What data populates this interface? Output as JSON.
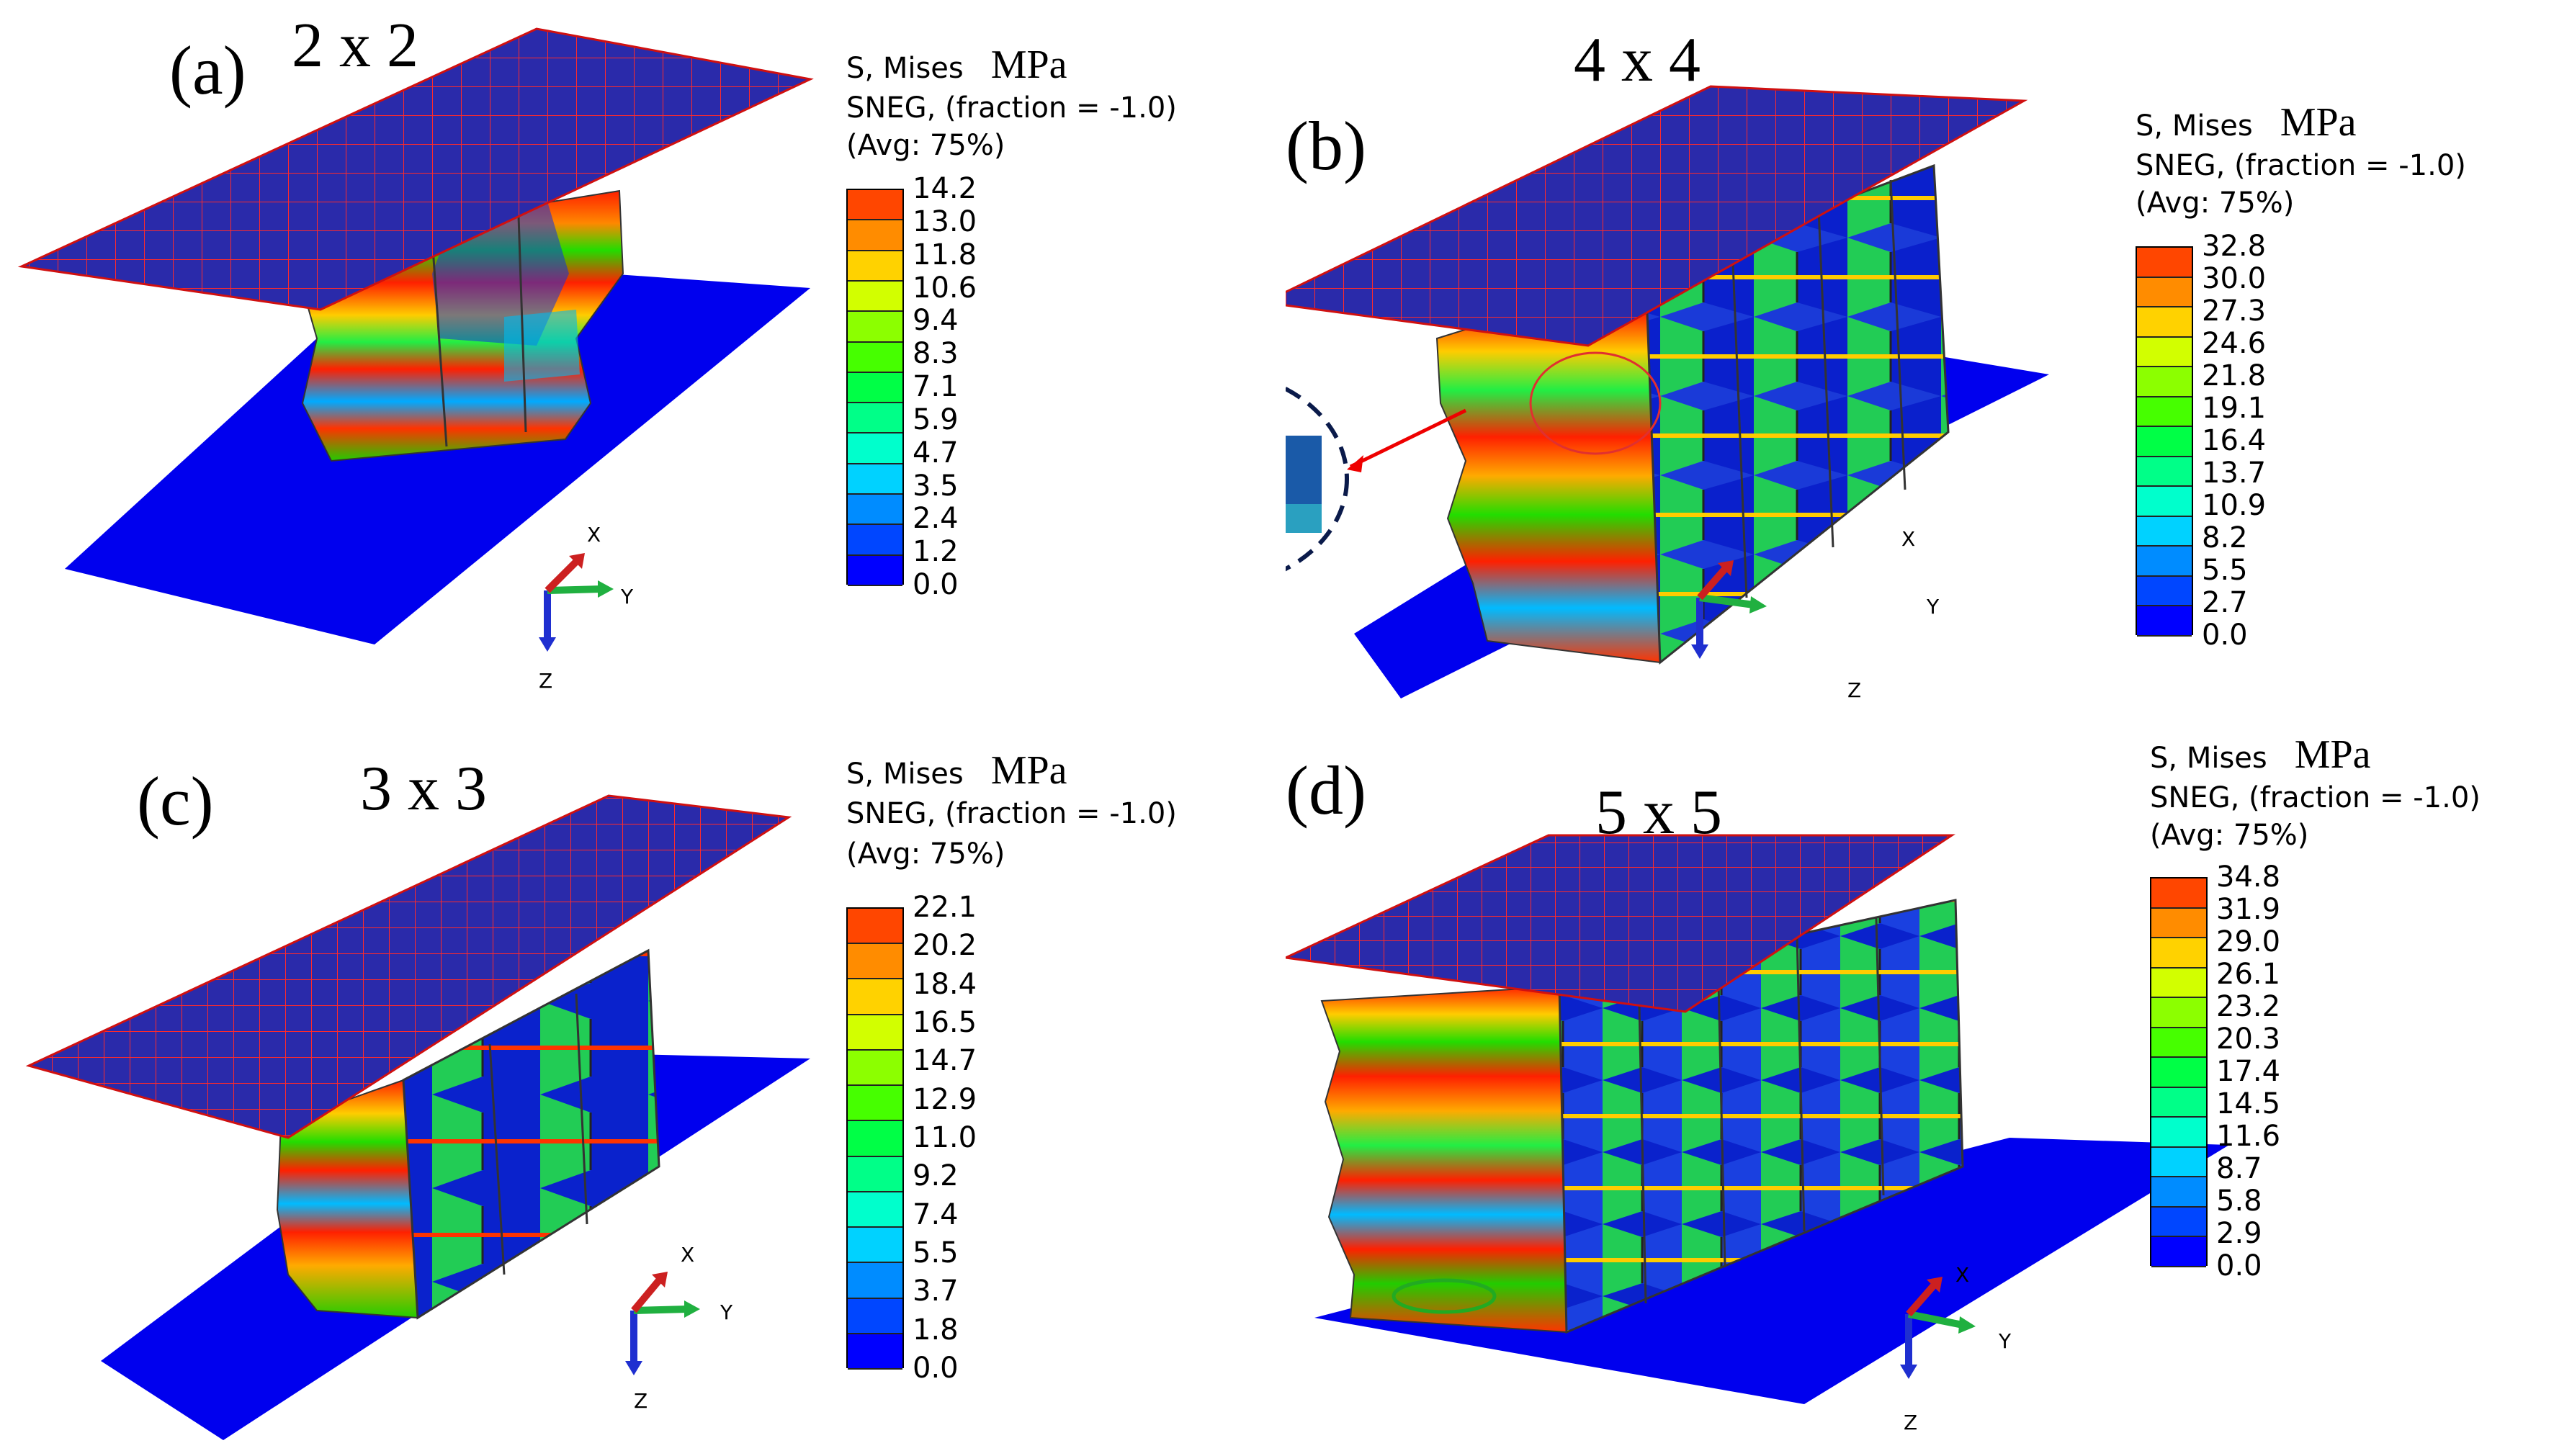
{
  "legend_colors": [
    "#0000ff",
    "#0046ff",
    "#008cff",
    "#00d2ff",
    "#00ffcc",
    "#00ff88",
    "#00ff46",
    "#46ff00",
    "#8cff00",
    "#d2ff00",
    "#ffd200",
    "#ff8c00",
    "#ff4600"
  ],
  "panels": [
    {
      "tag": "(a)",
      "grid": "2 x 2",
      "legend": {
        "line1": "S, Mises",
        "unit": "MPa",
        "line2": "SNEG, (fraction = -1.0)",
        "line3": "(Avg: 75%)",
        "values": [
          "14.2",
          "13.0",
          "11.8",
          "10.6",
          "9.4",
          "8.3",
          "7.1",
          "5.9",
          "4.7",
          "3.5",
          "2.4",
          "1.2",
          "0.0"
        ]
      },
      "axes": {
        "x": "X",
        "y": "Y",
        "z": "Z"
      }
    },
    {
      "tag": "(b)",
      "grid": "4 x 4",
      "legend": {
        "line1": "S, Mises",
        "unit": "MPa",
        "line2": "SNEG, (fraction = -1.0)",
        "line3": "(Avg: 75%)",
        "values": [
          "32.8",
          "30.0",
          "27.3",
          "24.6",
          "21.8",
          "19.1",
          "16.4",
          "13.7",
          "10.9",
          "8.2",
          "5.5",
          "2.7",
          "0.0"
        ]
      },
      "axes": {
        "x": "X",
        "y": "Y",
        "z": "Z"
      }
    },
    {
      "tag": "(c)",
      "grid": "3 x 3",
      "legend": {
        "line1": "S, Mises",
        "unit": "MPa",
        "line2": "SNEG, (fraction = -1.0)",
        "line3": "(Avg: 75%)",
        "values": [
          "22.1",
          "20.2",
          "18.4",
          "16.5",
          "14.7",
          "12.9",
          "11.0",
          "9.2",
          "7.4",
          "5.5",
          "3.7",
          "1.8",
          "0.0"
        ]
      },
      "axes": {
        "x": "X",
        "y": "Y",
        "z": "Z"
      }
    },
    {
      "tag": "(d)",
      "grid": "5 x 5",
      "legend": {
        "line1": "S, Mises",
        "unit": "MPa",
        "line2": "SNEG, (fraction = -1.0)",
        "line3": "(Avg: 75%)",
        "values": [
          "34.8",
          "31.9",
          "29.0",
          "26.1",
          "23.2",
          "20.3",
          "17.4",
          "14.5",
          "11.6",
          "8.7",
          "5.8",
          "2.9",
          "0.0"
        ]
      },
      "axes": {
        "x": "X",
        "y": "Y",
        "z": "Z"
      }
    }
  ]
}
